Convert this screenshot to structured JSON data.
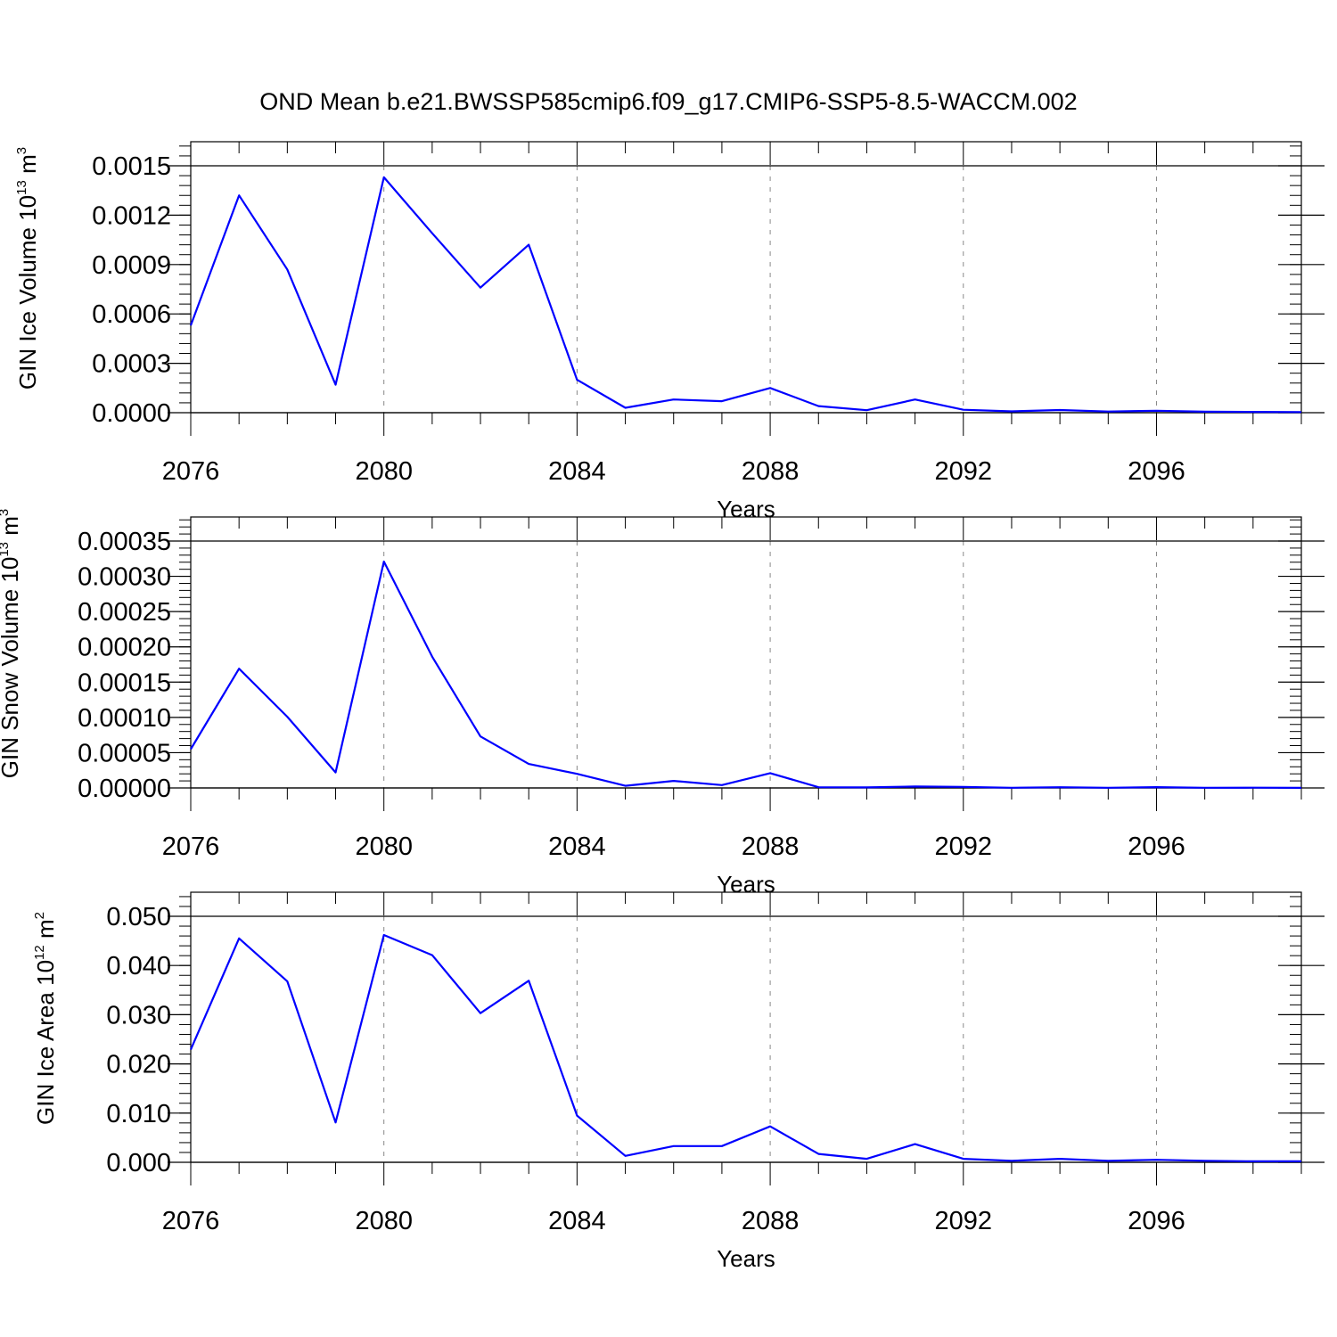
{
  "title": "OND Mean b.e21.BWSSP585cmip6.f09_g17.CMIP6-SSP5-8.5-WACCM.002",
  "colors": {
    "line": "#0000ff",
    "axis": "#000000",
    "grid": "#888888"
  },
  "chart_data": [
    {
      "type": "line",
      "xlabel": "Years",
      "ylabel": {
        "text": "GIN Ice Volume 10",
        "exp": "13",
        "unit": " m",
        "unit_exp": "3"
      },
      "xlim": [
        2076,
        2099
      ],
      "ylim": [
        0,
        0.0015
      ],
      "x_ticks": [
        2076,
        2080,
        2084,
        2088,
        2092,
        2096
      ],
      "x_tick_labels": [
        "2076",
        "2080",
        "2084",
        "2088",
        "2092",
        "2096"
      ],
      "y_ticks": [
        0,
        0.0003,
        0.0006,
        0.0009,
        0.0012,
        0.0015
      ],
      "y_tick_labels": [
        "0.0000",
        "0.0003",
        "0.0006",
        "0.0009",
        "0.0012",
        "0.0015"
      ],
      "y_minor_step": 6e-05,
      "grid": "vertical dashed at major x ticks",
      "x": [
        2076,
        2077,
        2078,
        2079,
        2080,
        2081,
        2082,
        2083,
        2084,
        2085,
        2086,
        2087,
        2088,
        2089,
        2090,
        2091,
        2092,
        2093,
        2094,
        2095,
        2096,
        2097,
        2098,
        2099
      ],
      "values": [
        0.00053,
        0.00132,
        0.00087,
        0.00017,
        0.00143,
        0.00109,
        0.00076,
        0.00102,
        0.0002,
        3e-05,
        8e-05,
        7e-05,
        0.00015,
        4e-05,
        1.5e-05,
        8e-05,
        1.8e-05,
        8e-06,
        1.6e-05,
        7e-06,
        1.2e-05,
        6e-06,
        5e-06,
        4e-06
      ]
    },
    {
      "type": "line",
      "xlabel": "Years",
      "ylabel": {
        "text": "GIN Snow Volume 10",
        "exp": "13",
        "unit": " m",
        "unit_exp": "3"
      },
      "xlim": [
        2076,
        2099
      ],
      "ylim": [
        0,
        0.00035
      ],
      "x_ticks": [
        2076,
        2080,
        2084,
        2088,
        2092,
        2096
      ],
      "x_tick_labels": [
        "2076",
        "2080",
        "2084",
        "2088",
        "2092",
        "2096"
      ],
      "y_ticks": [
        0,
        5e-05,
        0.0001,
        0.00015,
        0.0002,
        0.00025,
        0.0003,
        0.00035
      ],
      "y_tick_labels": [
        "0.00000",
        "0.00005",
        "0.00010",
        "0.00015",
        "0.00020",
        "0.00025",
        "0.00030",
        "0.00035"
      ],
      "y_minor_step": 1e-05,
      "grid": "vertical dashed at major x ticks",
      "x": [
        2076,
        2077,
        2078,
        2079,
        2080,
        2081,
        2082,
        2083,
        2084,
        2085,
        2086,
        2087,
        2088,
        2089,
        2090,
        2091,
        2092,
        2093,
        2094,
        2095,
        2096,
        2097,
        2098,
        2099
      ],
      "values": [
        5.5e-05,
        0.000169,
        0.000101,
        2.2e-05,
        0.000321,
        0.000186,
        7.3e-05,
        3.4e-05,
        2e-05,
        3e-06,
        1e-05,
        4e-06,
        2.1e-05,
        1e-06,
        8e-07,
        2e-06,
        1.5e-06,
        3e-07,
        1e-06,
        2e-07,
        1.2e-06,
        2e-07,
        4e-07,
        1e-07
      ]
    },
    {
      "type": "line",
      "xlabel": "Years",
      "ylabel": {
        "text": "GIN Ice Area 10",
        "exp": "12",
        "unit": " m",
        "unit_exp": "2"
      },
      "xlim": [
        2076,
        2099
      ],
      "ylim": [
        0,
        0.05
      ],
      "x_ticks": [
        2076,
        2080,
        2084,
        2088,
        2092,
        2096
      ],
      "x_tick_labels": [
        "2076",
        "2080",
        "2084",
        "2088",
        "2092",
        "2096"
      ],
      "y_ticks": [
        0,
        0.01,
        0.02,
        0.03,
        0.04,
        0.05
      ],
      "y_tick_labels": [
        "0.000",
        "0.010",
        "0.020",
        "0.030",
        "0.040",
        "0.050"
      ],
      "y_minor_step": 0.002,
      "grid": "vertical dashed at major x ticks",
      "x": [
        2076,
        2077,
        2078,
        2079,
        2080,
        2081,
        2082,
        2083,
        2084,
        2085,
        2086,
        2087,
        2088,
        2089,
        2090,
        2091,
        2092,
        2093,
        2094,
        2095,
        2096,
        2097,
        2098,
        2099
      ],
      "values": [
        0.0229,
        0.0455,
        0.0368,
        0.0081,
        0.0462,
        0.0421,
        0.0303,
        0.0369,
        0.0095,
        0.0013,
        0.0033,
        0.0033,
        0.0073,
        0.0017,
        0.0007,
        0.0037,
        0.0007,
        0.0003,
        0.0007,
        0.0003,
        0.0005,
        0.0003,
        0.0002,
        0.0002
      ]
    }
  ]
}
